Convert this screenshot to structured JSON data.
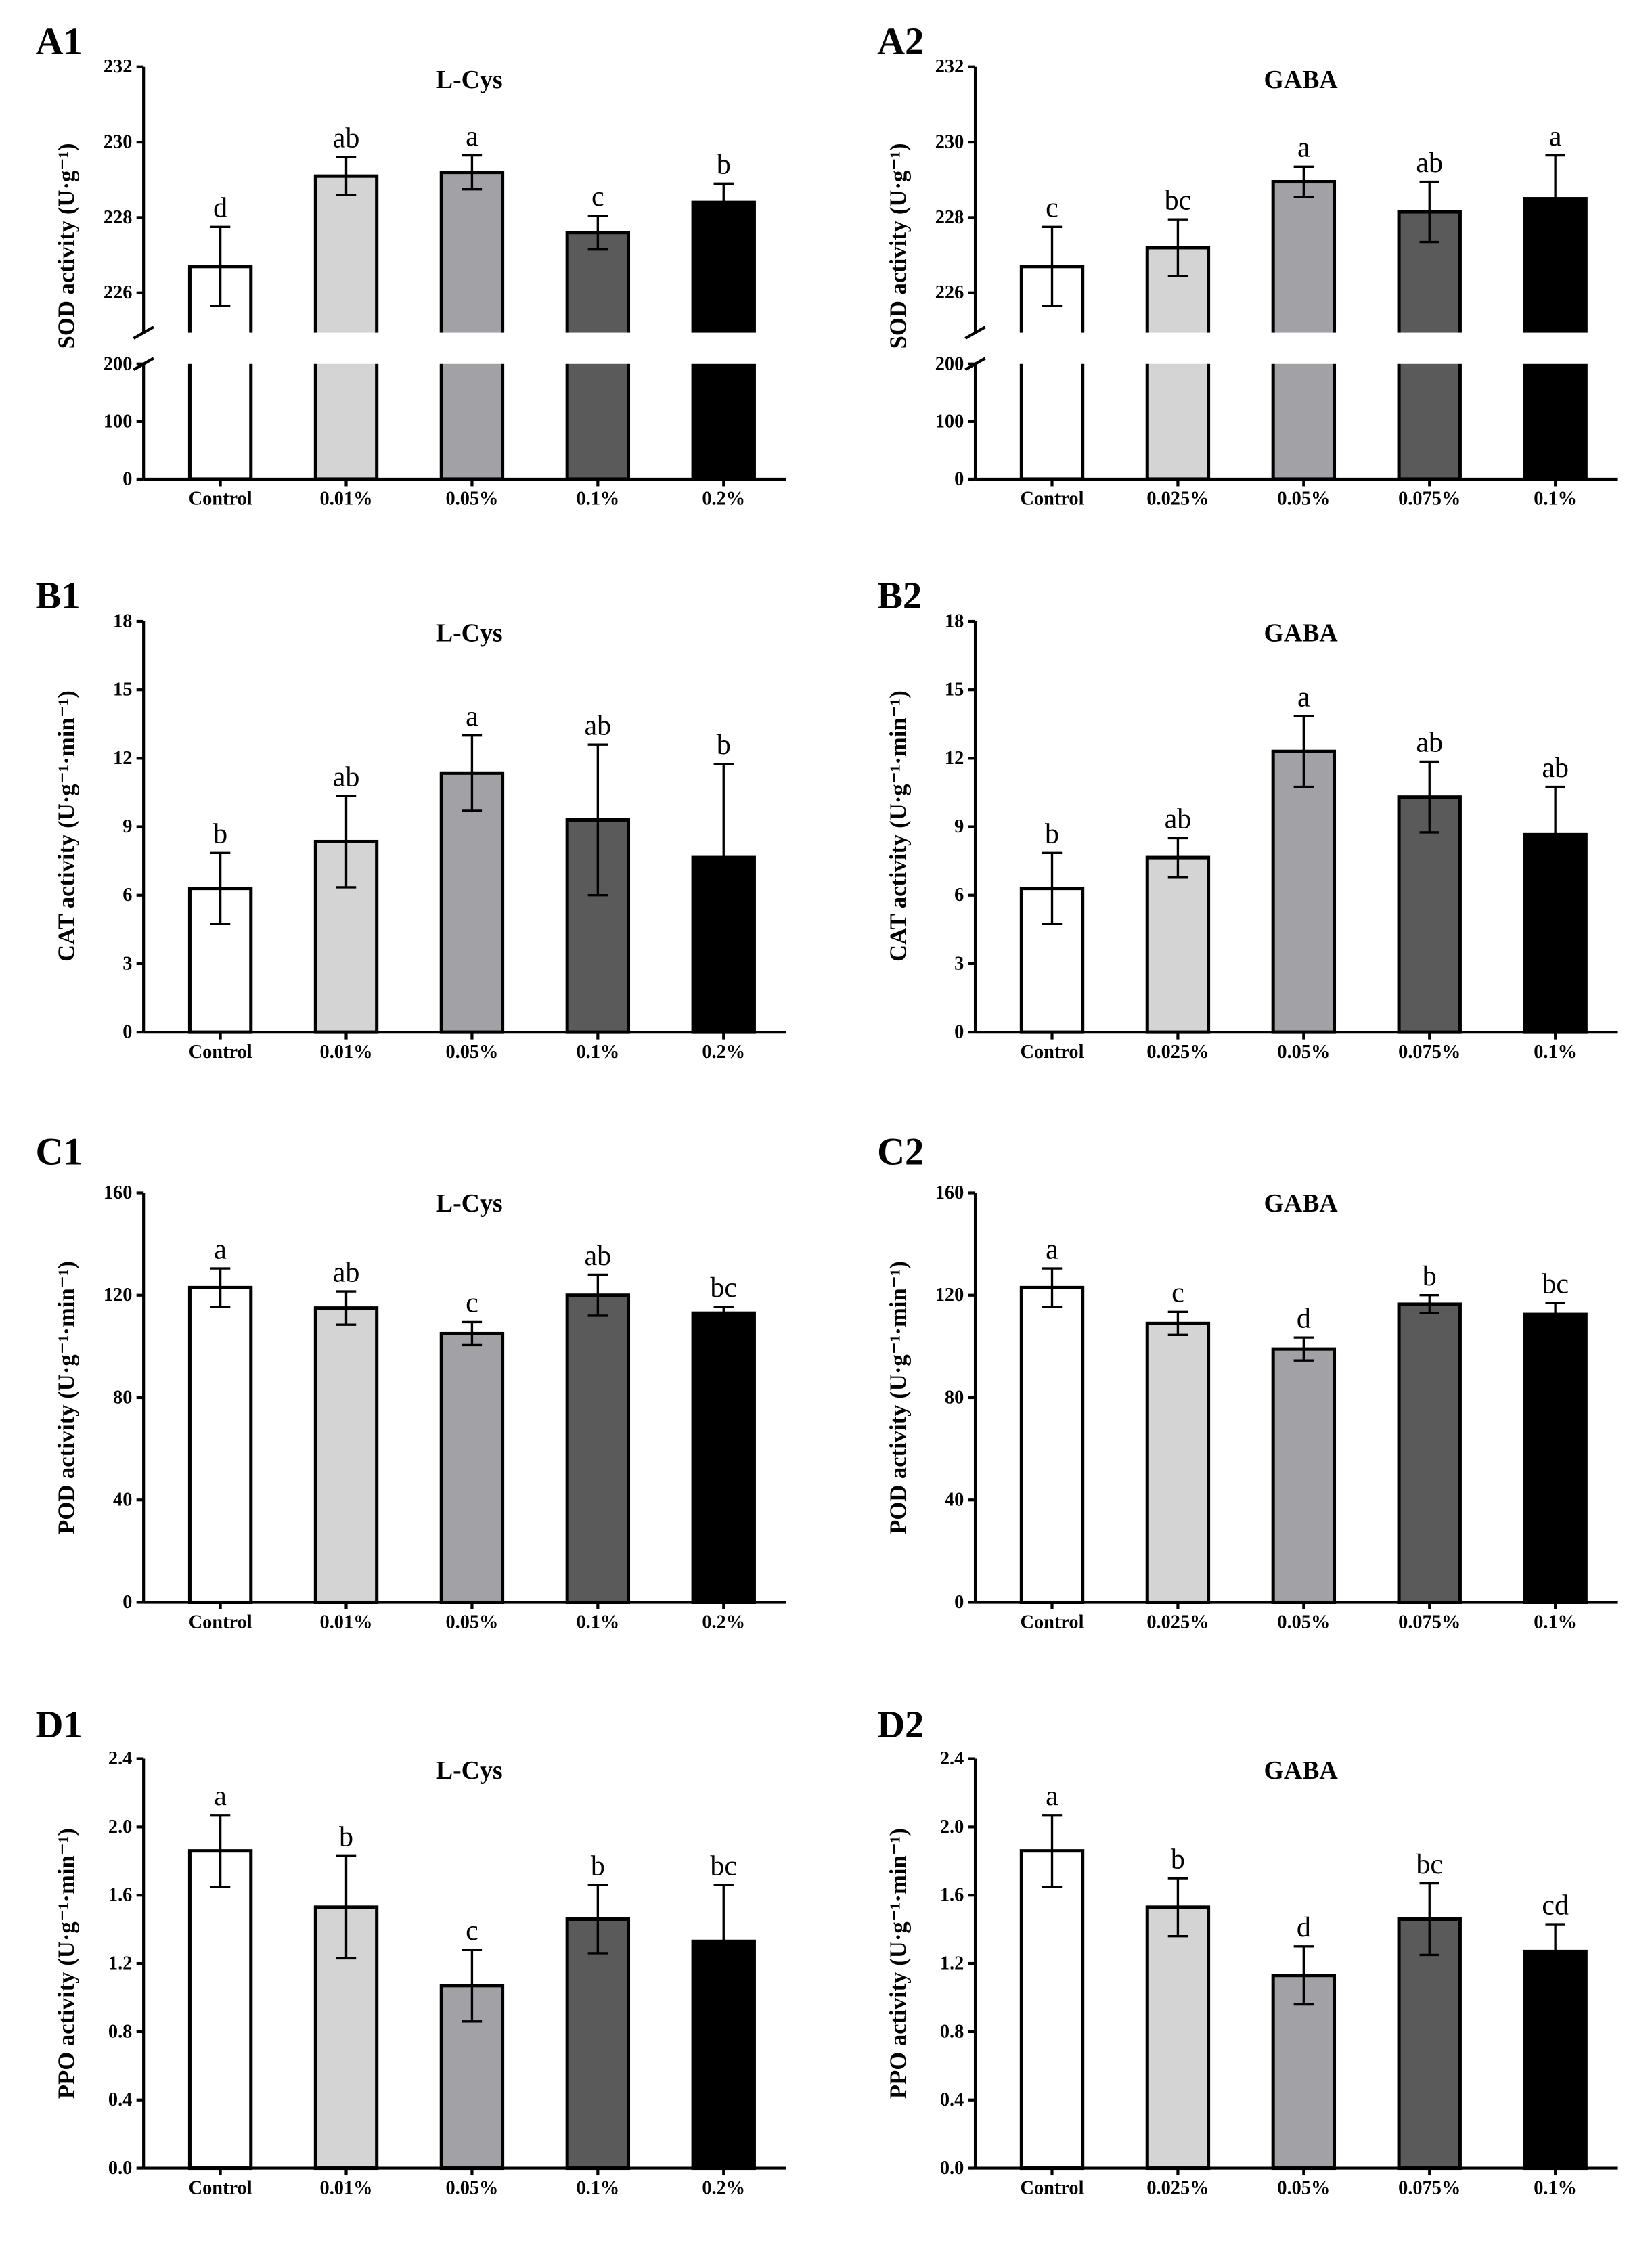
{
  "style": {
    "bar_colors": [
      "#ffffff",
      "#d4d4d4",
      "#a2a2a6",
      "#5a5a5a",
      "#000000"
    ],
    "outline_color": "#000000"
  },
  "chart_data": [
    {
      "panel_label": "A1",
      "type": "bar",
      "title": "L-Cys",
      "ylabel": "SOD activity (U·g⁻¹)",
      "categories": [
        "Control",
        "0.01%",
        "0.05%",
        "0.1%",
        "0.2%"
      ],
      "values": [
        226.7,
        229.1,
        229.2,
        227.6,
        228.4
      ],
      "errors": [
        1.05,
        0.5,
        0.45,
        0.45,
        0.5
      ],
      "letters": [
        "d",
        "ab",
        "a",
        "c",
        "b"
      ],
      "ylim": [
        0,
        232
      ],
      "y_break": {
        "lower": [
          0,
          200
        ],
        "upper": [
          226,
          232
        ]
      },
      "yticks": [
        0,
        100,
        200,
        226,
        228,
        230,
        232
      ],
      "ytick_labels": [
        "0",
        "100",
        "200",
        "226",
        "228",
        "230",
        "232"
      ],
      "grid": false
    },
    {
      "panel_label": "A2",
      "type": "bar",
      "title": "GABA",
      "ylabel": "SOD activity (U·g⁻¹)",
      "categories": [
        "Control",
        "0.025%",
        "0.05%",
        "0.075%",
        "0.1%"
      ],
      "values": [
        226.7,
        227.2,
        228.95,
        228.15,
        228.5
      ],
      "errors": [
        1.05,
        0.75,
        0.4,
        0.8,
        1.15
      ],
      "letters": [
        "c",
        "bc",
        "a",
        "ab",
        "a"
      ],
      "ylim": [
        0,
        232
      ],
      "y_break": {
        "lower": [
          0,
          200
        ],
        "upper": [
          226,
          232
        ]
      },
      "yticks": [
        0,
        100,
        200,
        226,
        228,
        230,
        232
      ],
      "ytick_labels": [
        "0",
        "100",
        "200",
        "226",
        "228",
        "230",
        "232"
      ],
      "grid": false
    },
    {
      "panel_label": "B1",
      "type": "bar",
      "title": "L-Cys",
      "ylabel": "CAT activity (U·g⁻¹·min⁻¹)",
      "categories": [
        "Control",
        "0.01%",
        "0.05%",
        "0.1%",
        "0.2%"
      ],
      "values": [
        6.3,
        8.35,
        11.35,
        9.3,
        7.65
      ],
      "errors": [
        1.55,
        2.0,
        1.65,
        3.3,
        4.1
      ],
      "letters": [
        "b",
        "ab",
        "a",
        "ab",
        "b"
      ],
      "ylim": [
        0,
        18
      ],
      "yticks": [
        0,
        3,
        6,
        9,
        12,
        15,
        18
      ],
      "ytick_labels": [
        "0",
        "3",
        "6",
        "9",
        "12",
        "15",
        "18"
      ],
      "grid": false
    },
    {
      "panel_label": "B2",
      "type": "bar",
      "title": "GABA",
      "ylabel": "CAT activity (U·g⁻¹·min⁻¹)",
      "categories": [
        "Control",
        "0.025%",
        "0.05%",
        "0.075%",
        "0.1%"
      ],
      "values": [
        6.3,
        7.65,
        12.3,
        10.3,
        8.65
      ],
      "errors": [
        1.55,
        0.85,
        1.55,
        1.55,
        2.1
      ],
      "letters": [
        "b",
        "ab",
        "a",
        "ab",
        "ab"
      ],
      "ylim": [
        0,
        18
      ],
      "yticks": [
        0,
        3,
        6,
        9,
        12,
        15,
        18
      ],
      "ytick_labels": [
        "0",
        "3",
        "6",
        "9",
        "12",
        "15",
        "18"
      ],
      "grid": false
    },
    {
      "panel_label": "C1",
      "type": "bar",
      "title": "L-Cys",
      "ylabel": "POD activity (U·g⁻¹·min⁻¹)",
      "categories": [
        "Control",
        "0.01%",
        "0.05%",
        "0.1%",
        "0.2%"
      ],
      "values": [
        123,
        115,
        105,
        120,
        113
      ],
      "errors": [
        7.5,
        6.5,
        4.5,
        8,
        2.5
      ],
      "letters": [
        "a",
        "ab",
        "c",
        "ab",
        "bc"
      ],
      "ylim": [
        0,
        160
      ],
      "yticks": [
        0,
        40,
        80,
        120,
        160
      ],
      "ytick_labels": [
        "0",
        "40",
        "80",
        "120",
        "160"
      ],
      "grid": false
    },
    {
      "panel_label": "C2",
      "type": "bar",
      "title": "GABA",
      "ylabel": "POD activity (U·g⁻¹·min⁻¹)",
      "categories": [
        "Control",
        "0.025%",
        "0.05%",
        "0.075%",
        "0.1%"
      ],
      "values": [
        123,
        109,
        99,
        116.5,
        112.5
      ],
      "errors": [
        7.5,
        4.5,
        4.5,
        3.5,
        4.5
      ],
      "letters": [
        "a",
        "c",
        "d",
        "b",
        "bc"
      ],
      "ylim": [
        0,
        160
      ],
      "yticks": [
        0,
        40,
        80,
        120,
        160
      ],
      "ytick_labels": [
        "0",
        "40",
        "80",
        "120",
        "160"
      ],
      "grid": false
    },
    {
      "panel_label": "D1",
      "type": "bar",
      "title": "L-Cys",
      "ylabel": "PPO activity (U·g⁻¹·min⁻¹)",
      "categories": [
        "Control",
        "0.01%",
        "0.05%",
        "0.1%",
        "0.2%"
      ],
      "values": [
        1.86,
        1.53,
        1.07,
        1.46,
        1.33
      ],
      "errors": [
        0.21,
        0.3,
        0.21,
        0.2,
        0.33
      ],
      "letters": [
        "a",
        "b",
        "c",
        "b",
        "bc"
      ],
      "ylim": [
        0,
        2.4
      ],
      "yticks": [
        0,
        0.4,
        0.8,
        1.2,
        1.6,
        2.0,
        2.4
      ],
      "ytick_labels": [
        "0.0",
        "0.4",
        "0.8",
        "1.2",
        "1.6",
        "2.0",
        "2.4"
      ],
      "grid": false
    },
    {
      "panel_label": "D2",
      "type": "bar",
      "title": "GABA",
      "ylabel": "PPO activity (U·g⁻¹·min⁻¹)",
      "categories": [
        "Control",
        "0.025%",
        "0.05%",
        "0.075%",
        "0.1%"
      ],
      "values": [
        1.86,
        1.53,
        1.13,
        1.46,
        1.27
      ],
      "errors": [
        0.21,
        0.17,
        0.17,
        0.21,
        0.16
      ],
      "letters": [
        "a",
        "b",
        "d",
        "bc",
        "cd"
      ],
      "ylim": [
        0,
        2.4
      ],
      "yticks": [
        0,
        0.4,
        0.8,
        1.2,
        1.6,
        2.0,
        2.4
      ],
      "ytick_labels": [
        "0.0",
        "0.4",
        "0.8",
        "1.2",
        "1.6",
        "2.0",
        "2.4"
      ],
      "grid": false
    }
  ]
}
